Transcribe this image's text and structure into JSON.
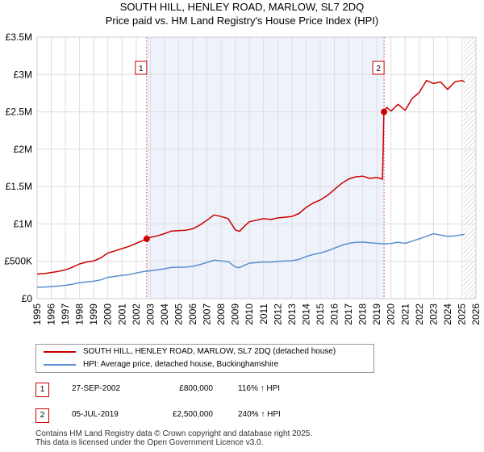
{
  "title_line1": "SOUTH HILL, HENLEY ROAD, MARLOW, SL7 2DQ",
  "title_line2": "Price paid vs. HM Land Registry's House Price Index (HPI)",
  "legend": {
    "property": "SOUTH HILL, HENLEY ROAD, MARLOW, SL7 2DQ (detached house)",
    "hpi": "HPI: Average price, detached house, Buckinghamshire"
  },
  "transactions": [
    {
      "num": "1",
      "date": "27-SEP-2002",
      "price": "£800,000",
      "hpi": "116% ↑ HPI"
    },
    {
      "num": "2",
      "date": "05-JUL-2019",
      "price": "£2,500,000",
      "hpi": "240% ↑ HPI"
    }
  ],
  "footer": {
    "line1": "Contains HM Land Registry data © Crown copyright and database right 2025.",
    "line2": "This data is licensed under the Open Government Licence v3.0."
  },
  "chart_data": {
    "type": "line",
    "title": "SOUTH HILL, HENLEY ROAD, MARLOW, SL7 2DQ",
    "subtitle": "Price paid vs. HM Land Registry's House Price Index (HPI)",
    "xlabel": "",
    "ylabel": "",
    "xlim": [
      1995,
      2026
    ],
    "ylim": [
      0,
      3500000
    ],
    "x_ticks": [
      1995,
      1996,
      1997,
      1998,
      1999,
      2000,
      2001,
      2002,
      2003,
      2004,
      2005,
      2006,
      2007,
      2008,
      2009,
      2010,
      2011,
      2012,
      2013,
      2014,
      2015,
      2016,
      2017,
      2018,
      2019,
      2020,
      2021,
      2022,
      2023,
      2024,
      2025,
      2026
    ],
    "y_ticks": [
      {
        "value": 0,
        "label": "£0"
      },
      {
        "value": 500000,
        "label": "£500K"
      },
      {
        "value": 1000000,
        "label": "£1M"
      },
      {
        "value": 1500000,
        "label": "£1.5M"
      },
      {
        "value": 2000000,
        "label": "£2M"
      },
      {
        "value": 2500000,
        "label": "£2.5M"
      },
      {
        "value": 3000000,
        "label": "£3M"
      },
      {
        "value": 3500000,
        "label": "£3.5M"
      }
    ],
    "grid": true,
    "shaded_period": [
      2002.74,
      2019.51
    ],
    "forecast_start": 2025.1,
    "colors": {
      "property": "#cc0000",
      "hpi": "#5b8fd0",
      "shade": "#eef2fb",
      "grid": "#dddddd",
      "marker_line": "#e0607a"
    },
    "markers": [
      {
        "label": "1",
        "x": 2002.74,
        "y": 800000
      },
      {
        "label": "2",
        "x": 2019.51,
        "y": 2500000
      }
    ],
    "series": [
      {
        "name": "SOUTH HILL, HENLEY ROAD, MARLOW, SL7 2DQ (detached house)",
        "x": [
          1995.0,
          1995.5,
          1996.0,
          1996.5,
          1997.0,
          1997.5,
          1998.0,
          1998.5,
          1999.0,
          1999.5,
          2000.0,
          2000.5,
          2001.0,
          2001.5,
          2002.0,
          2002.5,
          2002.74,
          2003.0,
          2003.5,
          2004.0,
          2004.5,
          2005.0,
          2005.5,
          2006.0,
          2006.5,
          2007.0,
          2007.5,
          2008.0,
          2008.5,
          2009.0,
          2009.3,
          2009.7,
          2010.0,
          2010.5,
          2011.0,
          2011.5,
          2012.0,
          2012.5,
          2013.0,
          2013.5,
          2014.0,
          2014.5,
          2015.0,
          2015.5,
          2016.0,
          2016.5,
          2017.0,
          2017.5,
          2018.0,
          2018.5,
          2019.0,
          2019.4,
          2019.5,
          2019.7,
          2020.0,
          2020.5,
          2021.0,
          2021.5,
          2022.0,
          2022.5,
          2023.0,
          2023.5,
          2024.0,
          2024.5,
          2025.0,
          2025.2
        ],
        "values": [
          330000,
          335000,
          350000,
          365000,
          385000,
          420000,
          465000,
          490000,
          505000,
          545000,
          610000,
          640000,
          670000,
          700000,
          740000,
          780000,
          800000,
          820000,
          840000,
          870000,
          905000,
          910000,
          915000,
          935000,
          985000,
          1050000,
          1120000,
          1100000,
          1070000,
          920000,
          900000,
          980000,
          1030000,
          1050000,
          1070000,
          1060000,
          1080000,
          1090000,
          1100000,
          1140000,
          1220000,
          1280000,
          1320000,
          1380000,
          1460000,
          1540000,
          1600000,
          1630000,
          1640000,
          1610000,
          1620000,
          1600000,
          2500000,
          2560000,
          2510000,
          2600000,
          2520000,
          2680000,
          2760000,
          2920000,
          2880000,
          2900000,
          2800000,
          2900000,
          2920000,
          2900000
        ]
      },
      {
        "name": "HPI: Average price, detached house, Buckinghamshire",
        "x": [
          1995.0,
          1995.5,
          1996.0,
          1996.5,
          1997.0,
          1997.5,
          1998.0,
          1998.5,
          1999.0,
          1999.5,
          2000.0,
          2000.5,
          2001.0,
          2001.5,
          2002.0,
          2002.5,
          2003.0,
          2003.5,
          2004.0,
          2004.5,
          2005.0,
          2005.5,
          2006.0,
          2006.5,
          2007.0,
          2007.5,
          2008.0,
          2008.5,
          2009.0,
          2009.3,
          2009.7,
          2010.0,
          2010.5,
          2011.0,
          2011.5,
          2012.0,
          2012.5,
          2013.0,
          2013.5,
          2014.0,
          2014.5,
          2015.0,
          2015.5,
          2016.0,
          2016.5,
          2017.0,
          2017.5,
          2018.0,
          2018.5,
          2019.0,
          2019.5,
          2020.0,
          2020.5,
          2021.0,
          2021.5,
          2022.0,
          2022.5,
          2023.0,
          2023.5,
          2024.0,
          2024.5,
          2025.0,
          2025.2
        ],
        "values": [
          153000,
          155000,
          162000,
          168000,
          178000,
          193000,
          215000,
          225000,
          233000,
          252000,
          285000,
          298000,
          312000,
          322000,
          343000,
          362000,
          373000,
          385000,
          400000,
          418000,
          420000,
          422000,
          432000,
          455000,
          485000,
          515000,
          505000,
          495000,
          425000,
          415000,
          450000,
          475000,
          482000,
          492000,
          488000,
          498000,
          503000,
          508000,
          525000,
          563000,
          590000,
          610000,
          638000,
          675000,
          712000,
          740000,
          753000,
          756000,
          748000,
          740000,
          735000,
          738000,
          755000,
          740000,
          770000,
          800000,
          835000,
          870000,
          850000,
          835000,
          840000,
          855000,
          860000
        ]
      }
    ]
  }
}
